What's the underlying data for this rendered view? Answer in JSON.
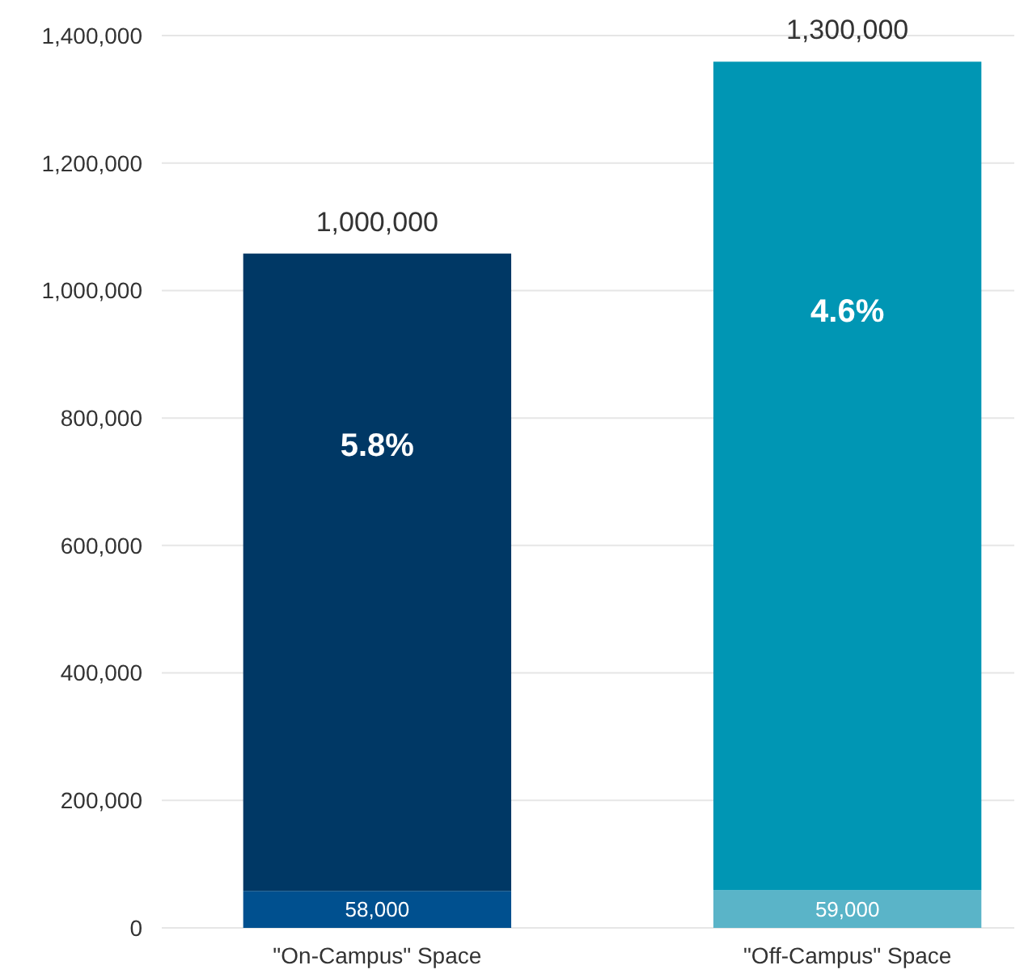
{
  "chart_data": {
    "type": "bar",
    "stacked": true,
    "categories": [
      "\"On-Campus\" Space",
      "\"Off-Campus\" Space"
    ],
    "series": [
      {
        "colors": [
          "#00508f",
          "#5ab4c8"
        ],
        "values": [
          58000,
          59000
        ],
        "value_labels": [
          "58,000",
          "59,000"
        ]
      },
      {
        "colors": [
          "#003865",
          "#0096b4"
        ],
        "values": [
          1000000,
          1300000
        ],
        "value_labels": [
          "1,000,000",
          "1,300,000"
        ]
      }
    ],
    "annotations": [
      "5.8%",
      "4.6%"
    ],
    "ylim": [
      0,
      1400000
    ],
    "yticks": [
      {
        "value": 0,
        "label": "0"
      },
      {
        "value": 200000,
        "label": "200,000"
      },
      {
        "value": 400000,
        "label": "400,000"
      },
      {
        "value": 600000,
        "label": "600,000"
      },
      {
        "value": 800000,
        "label": "800,000"
      },
      {
        "value": 1000000,
        "label": "1,000,000"
      },
      {
        "value": 1200000,
        "label": "1,200,000"
      },
      {
        "value": 1400000,
        "label": "1,400,000"
      }
    ],
    "grid": "y"
  }
}
